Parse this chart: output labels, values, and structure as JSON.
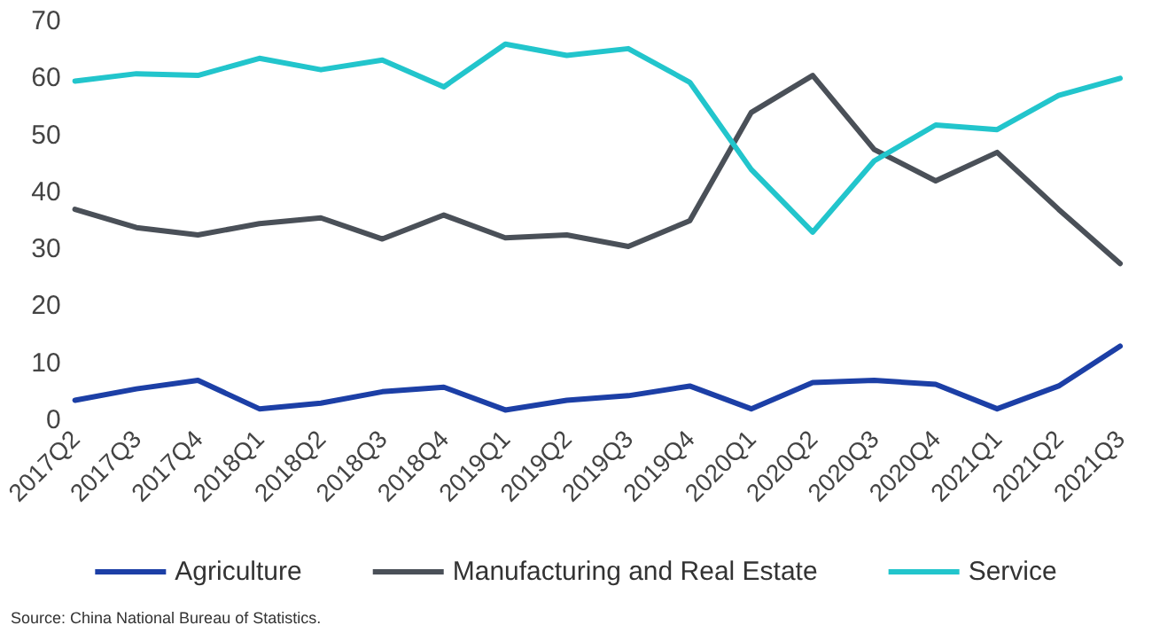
{
  "chart_data": {
    "type": "line",
    "categories": [
      "2017Q2",
      "2017Q3",
      "2017Q4",
      "2018Q1",
      "2018Q2",
      "2018Q3",
      "2018Q4",
      "2019Q1",
      "2019Q2",
      "2019Q3",
      "2019Q4",
      "2020Q1",
      "2020Q2",
      "2020Q3",
      "2020Q4",
      "2021Q1",
      "2021Q2",
      "2021Q3"
    ],
    "series": [
      {
        "name": "Agriculture",
        "color": "#1c3fa6",
        "values": [
          3.5,
          5.5,
          7,
          2,
          3,
          5,
          5.8,
          1.8,
          3.5,
          4.3,
          6,
          2,
          6.6,
          7,
          6.3,
          2,
          6,
          13
        ]
      },
      {
        "name": "Manufacturing and Real Estate",
        "color": "#4a5058",
        "values": [
          37,
          33.8,
          32.5,
          34.5,
          35.5,
          31.8,
          36,
          32,
          32.5,
          30.5,
          35,
          54,
          60.5,
          47.5,
          42,
          47,
          37,
          27.5
        ]
      },
      {
        "name": "Service",
        "color": "#22c5cc",
        "values": [
          59.5,
          60.8,
          60.5,
          63.5,
          61.5,
          63.2,
          58.5,
          66,
          64,
          65.2,
          59.3,
          44,
          33,
          45.5,
          51.8,
          51,
          57,
          60
        ]
      }
    ],
    "ylim": [
      0,
      70
    ],
    "yticks": [
      0,
      10,
      20,
      30,
      40,
      50,
      60,
      70
    ],
    "grid": false,
    "legend": "bottom",
    "marker": "none",
    "line_style": "solid",
    "annotations": [
      "Source: China National Bureau of Statistics."
    ]
  }
}
